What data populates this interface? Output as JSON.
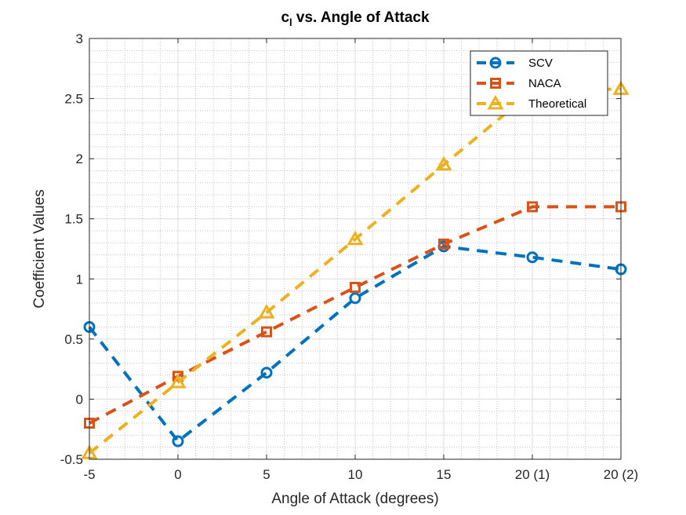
{
  "chart_data": {
    "type": "line",
    "title_main": "c",
    "title_sub": "l",
    "title_rest": " vs. Angle of Attack",
    "xlabel": "Angle of Attack (degrees)",
    "ylabel": "Coefficient Values",
    "categories": [
      "-5",
      "0",
      "5",
      "10",
      "15",
      "20 (1)",
      "20 (2)"
    ],
    "ylim": [
      -0.5,
      3
    ],
    "yticks": [
      -0.5,
      0,
      0.5,
      1,
      1.5,
      2,
      2.5,
      3
    ],
    "ytick_labels": [
      "-0.5",
      "0",
      "0.5",
      "1",
      "1.5",
      "2",
      "2.5",
      "3"
    ],
    "grid": true,
    "minor_grid": true,
    "legend_position": "top-right",
    "series": [
      {
        "name": "SCV",
        "marker": "circle",
        "color": "#0072BD",
        "values": [
          0.6,
          -0.35,
          0.22,
          0.84,
          1.27,
          1.18,
          1.08
        ]
      },
      {
        "name": "NACA",
        "marker": "square",
        "color": "#D95319",
        "values": [
          -0.2,
          0.19,
          0.56,
          0.93,
          1.29,
          1.6,
          1.6
        ]
      },
      {
        "name": "Theoretical",
        "marker": "triangle",
        "color": "#EDB120",
        "values": [
          -0.45,
          0.14,
          0.72,
          1.33,
          1.95,
          2.56,
          2.58
        ]
      }
    ]
  }
}
